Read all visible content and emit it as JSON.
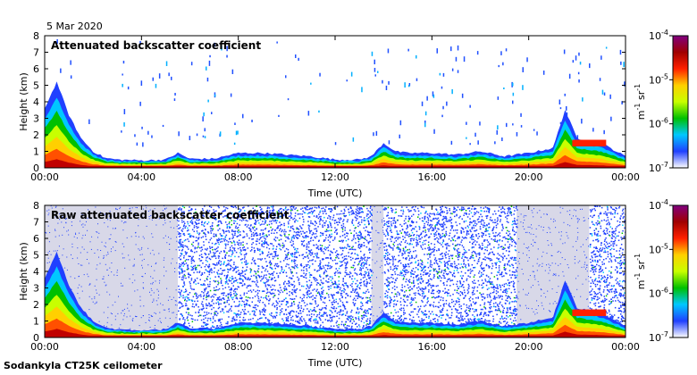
{
  "date_label": "5 Mar 2020",
  "footer_label": "Sodankyla CT25K ceilometer",
  "chart_data": [
    {
      "type": "heatmap",
      "title": "Attenuated backscatter coefficient",
      "xlabel": "Time (UTC)",
      "ylabel": "Height (km)",
      "x_ticks": [
        "00:00",
        "04:00",
        "08:00",
        "12:00",
        "16:00",
        "20:00",
        "00:00"
      ],
      "y_ticks": [
        "0",
        "1",
        "2",
        "3",
        "4",
        "5",
        "6",
        "7",
        "8"
      ],
      "ylim": [
        0,
        8
      ],
      "colorbar": {
        "ticks": [
          "10",
          "10",
          "10",
          "10"
        ],
        "exponents": [
          "-7",
          "-6",
          "-5",
          "-4"
        ],
        "unit_base": [
          "m",
          "sr"
        ],
        "unit_exponents": [
          "-1",
          "-1"
        ],
        "colors": [
          "#ffffff",
          "#2040ff",
          "#00c8ff",
          "#00c000",
          "#c8ff00",
          "#ffd000",
          "#ff2000",
          "#a00000",
          "#800080"
        ],
        "scale": "log"
      },
      "boundary_layer_top_km": [
        [
          0.0,
          3.6
        ],
        [
          0.5,
          5.2
        ],
        [
          1.0,
          3.2
        ],
        [
          1.5,
          1.8
        ],
        [
          2.0,
          1.0
        ],
        [
          2.5,
          0.6
        ],
        [
          3.0,
          0.5
        ],
        [
          4.0,
          0.45
        ],
        [
          5.0,
          0.5
        ],
        [
          5.5,
          0.9
        ],
        [
          6.0,
          0.55
        ],
        [
          7.0,
          0.55
        ],
        [
          8.0,
          0.9
        ],
        [
          9.0,
          0.9
        ],
        [
          10.0,
          0.8
        ],
        [
          11.0,
          0.7
        ],
        [
          12.0,
          0.5
        ],
        [
          13.0,
          0.5
        ],
        [
          13.5,
          0.7
        ],
        [
          14.0,
          1.5
        ],
        [
          14.5,
          1.0
        ],
        [
          15.0,
          0.9
        ],
        [
          16.0,
          0.9
        ],
        [
          17.0,
          0.8
        ],
        [
          18.0,
          1.0
        ],
        [
          19.0,
          0.7
        ],
        [
          20.0,
          0.9
        ],
        [
          21.0,
          1.2
        ],
        [
          21.5,
          3.5
        ],
        [
          22.0,
          1.8
        ],
        [
          23.0,
          1.5
        ],
        [
          24.0,
          0.7
        ]
      ]
    },
    {
      "type": "heatmap",
      "title": "Raw attenuated backscatter coefficient",
      "xlabel": "Time (UTC)",
      "ylabel": "Height (km)",
      "x_ticks": [
        "00:00",
        "04:00",
        "08:00",
        "12:00",
        "16:00",
        "20:00",
        "00:00"
      ],
      "y_ticks": [
        "0",
        "1",
        "2",
        "3",
        "4",
        "5",
        "6",
        "7",
        "8"
      ],
      "ylim": [
        0,
        8
      ],
      "colorbar": {
        "ticks": [
          "10",
          "10",
          "10",
          "10"
        ],
        "exponents": [
          "-7",
          "-6",
          "-5",
          "-4"
        ],
        "unit_base": [
          "m",
          "sr"
        ],
        "unit_exponents": [
          "-1",
          "-1"
        ],
        "colors": [
          "#ffffff",
          "#2040ff",
          "#00c8ff",
          "#00c000",
          "#c8ff00",
          "#ffd000",
          "#ff2000",
          "#a00000",
          "#800080"
        ],
        "scale": "log"
      },
      "noise_background_color": "#d8d8e8",
      "noise_color": "#2040ff",
      "noise_dense_segments_h": [
        [
          5.5,
          13.5
        ],
        [
          14.0,
          19.5
        ],
        [
          22.5,
          24.0
        ]
      ],
      "noise_sparse_segments_h": [
        [
          0.0,
          5.5
        ],
        [
          13.5,
          14.0
        ],
        [
          19.5,
          22.5
        ]
      ],
      "boundary_layer_top_km": [
        [
          0.0,
          3.6
        ],
        [
          0.5,
          5.2
        ],
        [
          1.0,
          3.2
        ],
        [
          1.5,
          1.8
        ],
        [
          2.0,
          1.0
        ],
        [
          2.5,
          0.6
        ],
        [
          3.0,
          0.5
        ],
        [
          4.0,
          0.45
        ],
        [
          5.0,
          0.5
        ],
        [
          5.5,
          0.9
        ],
        [
          6.0,
          0.55
        ],
        [
          7.0,
          0.55
        ],
        [
          8.0,
          0.9
        ],
        [
          9.0,
          0.9
        ],
        [
          10.0,
          0.8
        ],
        [
          11.0,
          0.7
        ],
        [
          12.0,
          0.5
        ],
        [
          13.0,
          0.5
        ],
        [
          13.5,
          0.7
        ],
        [
          14.0,
          1.5
        ],
        [
          14.5,
          1.0
        ],
        [
          15.0,
          0.9
        ],
        [
          16.0,
          0.9
        ],
        [
          17.0,
          0.8
        ],
        [
          18.0,
          1.0
        ],
        [
          19.0,
          0.7
        ],
        [
          20.0,
          0.9
        ],
        [
          21.0,
          1.2
        ],
        [
          21.5,
          3.5
        ],
        [
          22.0,
          1.8
        ],
        [
          23.0,
          1.5
        ],
        [
          24.0,
          0.7
        ]
      ]
    }
  ]
}
